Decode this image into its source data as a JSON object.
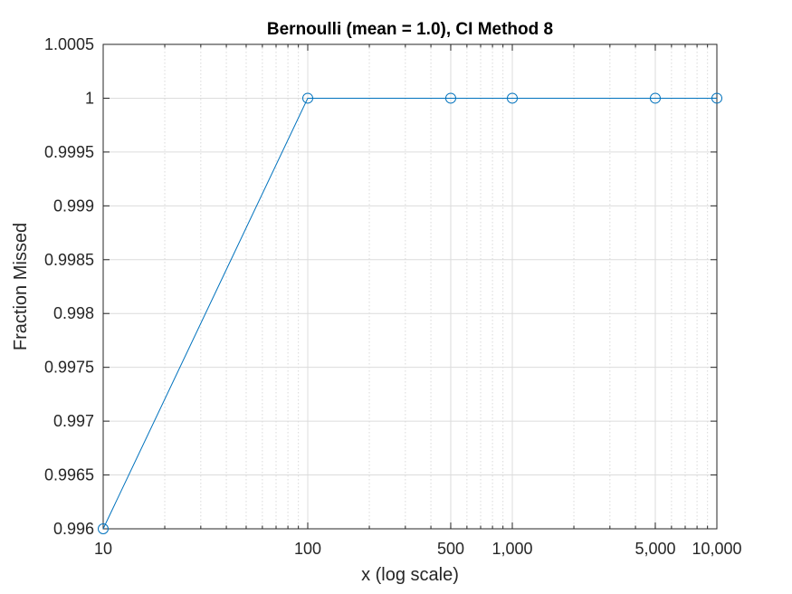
{
  "chart_data": {
    "type": "line",
    "title": "Bernoulli (mean = 1.0), CI Method 8",
    "xlabel": "x (log scale)",
    "ylabel": "Fraction Missed",
    "x_scale": "log",
    "xlim": [
      10,
      10000
    ],
    "ylim": [
      0.996,
      1.0005
    ],
    "grid": true,
    "x_ticks": [
      {
        "value": 10,
        "label": "10"
      },
      {
        "value": 100,
        "label": "100"
      },
      {
        "value": 500,
        "label": "500"
      },
      {
        "value": 1000,
        "label": "1,000"
      },
      {
        "value": 5000,
        "label": "5,000"
      },
      {
        "value": 10000,
        "label": "10,000"
      }
    ],
    "y_ticks": [
      {
        "value": 0.996,
        "label": "0.996"
      },
      {
        "value": 0.9965,
        "label": "0.9965"
      },
      {
        "value": 0.997,
        "label": "0.997"
      },
      {
        "value": 0.9975,
        "label": "0.9975"
      },
      {
        "value": 0.998,
        "label": "0.998"
      },
      {
        "value": 0.9985,
        "label": "0.9985"
      },
      {
        "value": 0.999,
        "label": "0.999"
      },
      {
        "value": 0.9995,
        "label": "0.9995"
      },
      {
        "value": 1.0,
        "label": "1"
      },
      {
        "value": 1.0005,
        "label": "1.0005"
      }
    ],
    "series": [
      {
        "color": "#0072bd",
        "marker": "circle",
        "x": [
          10,
          100,
          500,
          1000,
          5000,
          10000
        ],
        "y": [
          0.996,
          1.0,
          1.0,
          1.0,
          1.0,
          1.0
        ]
      }
    ]
  }
}
